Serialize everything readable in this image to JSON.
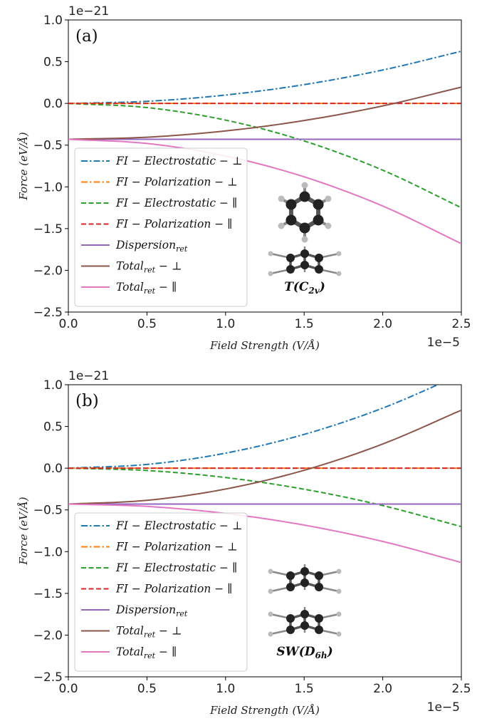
{
  "chart_data": [
    {
      "type": "line",
      "panel_label": "(a)",
      "ylabel": "Force (eV/Å)",
      "xlabel": "Field Strength (V/Å)",
      "x_offset_text": "1e−5",
      "y_offset_text": "1e−21",
      "xlim": [
        0,
        2.5
      ],
      "ylim": [
        -2.5,
        1.0
      ],
      "xticks": [
        "0.0",
        "0.5",
        "1.0",
        "1.5",
        "2.0",
        "2.5"
      ],
      "yticks": [
        "1.0",
        "0.5",
        "0.0",
        "−0.5",
        "−1.0",
        "−1.5",
        "−2.0",
        "−2.5"
      ],
      "molecule_label": "T(C2v)",
      "legend_position": "lower-left",
      "series": [
        {
          "name": "FI − Electrostatic − ⊥",
          "color": "#1f77b4",
          "style": "dashdot",
          "x": [
            0,
            0.5,
            1.0,
            1.5,
            2.0,
            2.5
          ],
          "y": [
            0,
            0.025,
            0.1,
            0.225,
            0.4,
            0.625
          ]
        },
        {
          "name": "FI − Polarization − ⊥",
          "color": "#ff7f0e",
          "style": "dashdot",
          "x": [
            0,
            2.5
          ],
          "y": [
            0,
            0
          ]
        },
        {
          "name": "FI − Electrostatic − ∥",
          "color": "#2ca02c",
          "style": "dashed",
          "x": [
            0,
            0.5,
            1.0,
            1.5,
            2.0,
            2.5
          ],
          "y": [
            0,
            -0.05,
            -0.2,
            -0.45,
            -0.8,
            -1.25
          ]
        },
        {
          "name": "FI − Polarization − ∥",
          "color": "#d62728",
          "style": "dashed",
          "x": [
            0,
            2.5
          ],
          "y": [
            0,
            0
          ]
        },
        {
          "name": "Dispersionret",
          "color": "#9467bd",
          "style": "solid",
          "x": [
            0,
            2.5
          ],
          "y": [
            -0.43,
            -0.43
          ]
        },
        {
          "name": "Totalret − ⊥",
          "color": "#8c564b",
          "style": "solid",
          "x": [
            0,
            0.5,
            1.0,
            1.5,
            2.0,
            2.5
          ],
          "y": [
            -0.43,
            -0.405,
            -0.33,
            -0.205,
            -0.03,
            0.195
          ]
        },
        {
          "name": "Totalret − ∥",
          "color": "#e377c2",
          "style": "solid",
          "x": [
            0,
            0.5,
            1.0,
            1.5,
            2.0,
            2.5
          ],
          "y": [
            -0.43,
            -0.48,
            -0.63,
            -0.88,
            -1.23,
            -1.68
          ]
        }
      ]
    },
    {
      "type": "line",
      "panel_label": "(b)",
      "ylabel": "Force (eV/Å)",
      "xlabel": "Field Strength (V/Å)",
      "x_offset_text": "1e−5",
      "y_offset_text": "1e−21",
      "xlim": [
        0,
        2.5
      ],
      "ylim": [
        -2.5,
        1.0
      ],
      "xticks": [
        "0.0",
        "0.5",
        "1.0",
        "1.5",
        "2.0",
        "2.5"
      ],
      "yticks": [
        "1.0",
        "0.5",
        "0.0",
        "−0.5",
        "−1.0",
        "−1.5",
        "−2.0",
        "−2.5"
      ],
      "molecule_label": "SW(D6h)",
      "legend_position": "lower-left",
      "series": [
        {
          "name": "FI − Electrostatic − ⊥",
          "color": "#1f77b4",
          "style": "dashdot",
          "x": [
            0,
            0.5,
            1.0,
            1.5,
            2.0,
            2.5
          ],
          "y": [
            0,
            0.045,
            0.18,
            0.405,
            0.72,
            1.125
          ]
        },
        {
          "name": "FI − Polarization − ⊥",
          "color": "#ff7f0e",
          "style": "dashdot",
          "x": [
            0,
            2.5
          ],
          "y": [
            0,
            0
          ]
        },
        {
          "name": "FI − Electrostatic − ∥",
          "color": "#2ca02c",
          "style": "dashed",
          "x": [
            0,
            0.5,
            1.0,
            1.5,
            2.0,
            2.5
          ],
          "y": [
            0,
            -0.028,
            -0.112,
            -0.252,
            -0.448,
            -0.7
          ]
        },
        {
          "name": "FI − Polarization − ∥",
          "color": "#d62728",
          "style": "dashed",
          "x": [
            0,
            2.5
          ],
          "y": [
            0,
            0
          ]
        },
        {
          "name": "Dispersionret",
          "color": "#9467bd",
          "style": "solid",
          "x": [
            0,
            2.5
          ],
          "y": [
            -0.43,
            -0.43
          ]
        },
        {
          "name": "Totalret − ⊥",
          "color": "#8c564b",
          "style": "solid",
          "x": [
            0,
            0.5,
            1.0,
            1.5,
            2.0,
            2.5
          ],
          "y": [
            -0.43,
            -0.385,
            -0.25,
            -0.025,
            0.29,
            0.695
          ]
        },
        {
          "name": "Totalret − ∥",
          "color": "#e377c2",
          "style": "solid",
          "x": [
            0,
            0.5,
            1.0,
            1.5,
            2.0,
            2.5
          ],
          "y": [
            -0.43,
            -0.458,
            -0.542,
            -0.682,
            -0.878,
            -1.13
          ]
        }
      ]
    }
  ]
}
